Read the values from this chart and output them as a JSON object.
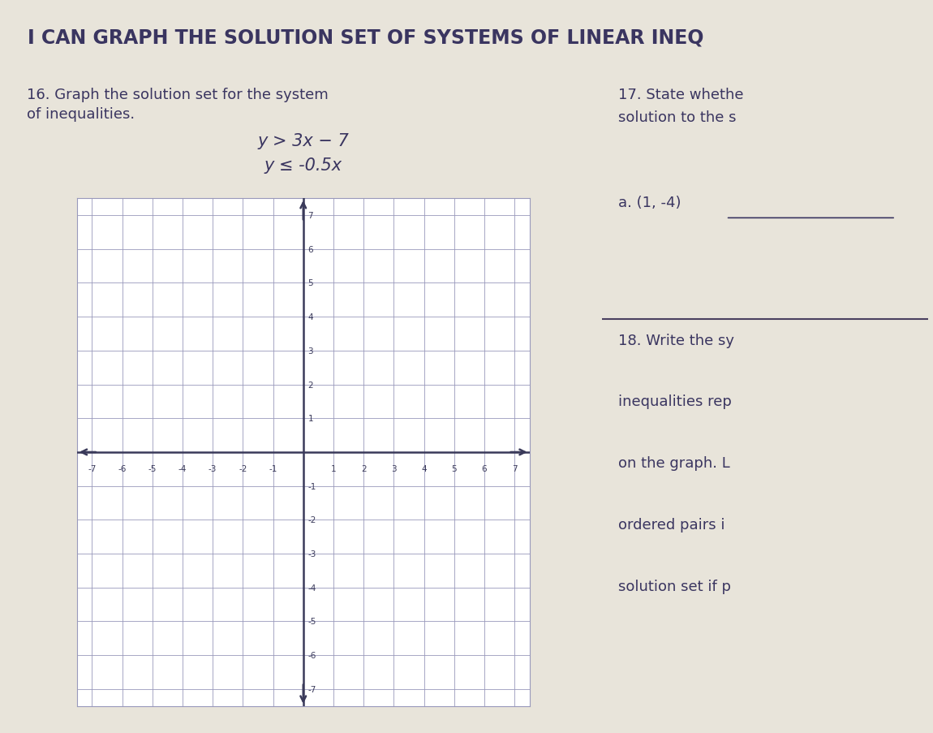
{
  "title": "I CAN GRAPH THE SOLUTION SET OF SYSTEMS OF LINEAR INEQ",
  "title_fontsize": 17,
  "bg_color": "#e8e4da",
  "cell_bg_white": "#f2efe8",
  "cell_bg_light": "#ede9e0",
  "q16_text_line1": "16. Graph the solution set for the system",
  "q16_text_line2": "of inequalities.",
  "eq1": "y > 3x − 7",
  "eq2": "y ≤ -0.5x",
  "q17_text_line1": "17. State whethe",
  "q17_text_line2": "solution to the s",
  "q17_a": "a. (1, -4)",
  "q18_text_line1": "18. Write the sy",
  "q18_text_line2": "inequalities rep",
  "q18_text_line3": "on the graph. L",
  "q18_text_line4": "ordered pairs i",
  "q18_text_line5": "solution set if p",
  "grid_color": "#9999bb",
  "axis_color": "#3a3a5a",
  "text_color": "#3a3560",
  "xlim": [
    -7.5,
    7.5
  ],
  "ylim": [
    -7.5,
    7.5
  ],
  "xticks": [
    -7,
    -6,
    -5,
    -4,
    -3,
    -2,
    -1,
    1,
    2,
    3,
    4,
    5,
    6,
    7
  ],
  "yticks": [
    -7,
    -6,
    -5,
    -4,
    -3,
    -2,
    -1,
    1,
    2,
    3,
    4,
    5,
    6,
    7
  ],
  "border_color": "#4a4060",
  "title_border": "#5a5070",
  "divider_color": "#4a4060"
}
